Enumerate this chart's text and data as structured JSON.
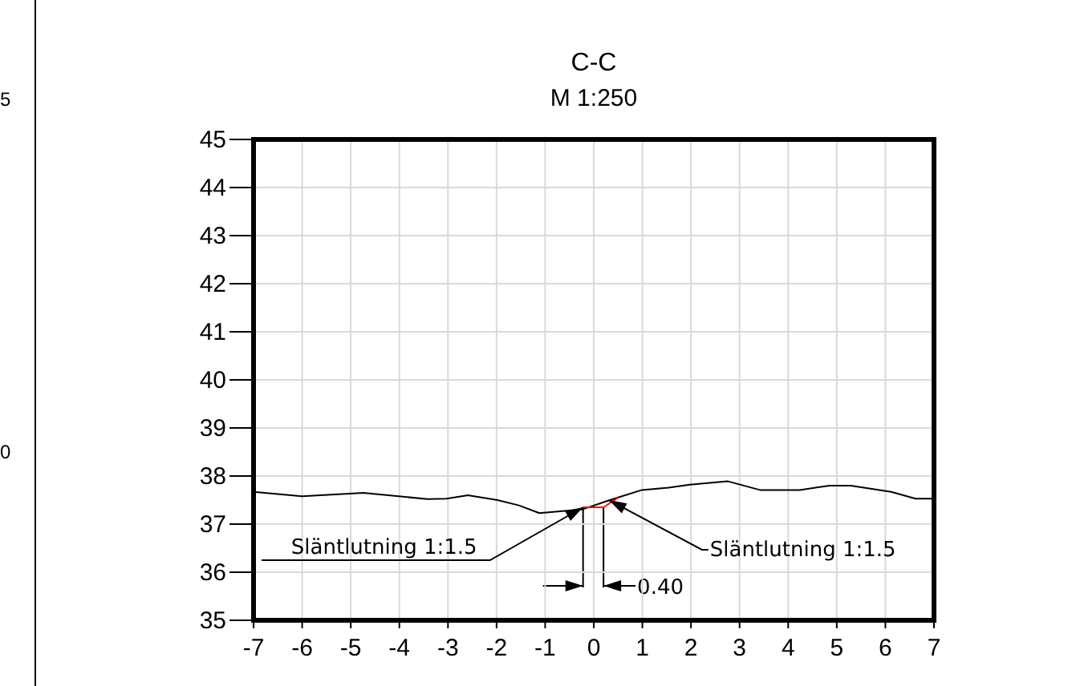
{
  "chart_data": {
    "type": "line",
    "title": "C-C",
    "subtitle": "M 1:250",
    "x": [
      -7,
      -6,
      -4.74,
      -3.42,
      -3.03,
      -2.59,
      -1.98,
      -1.54,
      -1.12,
      -0.22,
      0.33,
      0.99,
      1.54,
      1.98,
      2.76,
      3.42,
      4.24,
      4.85,
      5.29,
      6.12,
      6.62,
      7
    ],
    "series": [
      {
        "color": "#000000",
        "values": [
          37.67,
          37.58,
          37.65,
          37.52,
          37.53,
          37.6,
          37.5,
          37.39,
          37.23,
          37.31,
          37.5,
          37.71,
          37.76,
          37.82,
          37.89,
          37.71,
          37.71,
          37.8,
          37.8,
          37.67,
          37.53,
          37.53
        ]
      },
      {
        "color": "#ff0000",
        "x": [
          -0.22,
          0.2,
          0.5
        ],
        "values": [
          37.35,
          37.35,
          37.55
        ]
      }
    ],
    "xlim": [
      -7,
      7
    ],
    "xticks": [
      -7,
      -6,
      -5,
      -4,
      -3,
      -2,
      -1,
      0,
      1,
      2,
      3,
      4,
      5,
      6,
      7
    ],
    "ylim": [
      35,
      45
    ],
    "yticks": [
      35,
      36,
      37,
      38,
      39,
      40,
      41,
      42,
      43,
      44,
      45
    ],
    "grid": true,
    "line_style": "solid",
    "annotations": [
      {
        "text": "Släntlutning 1:1.5",
        "x": -0.22,
        "y": 37.35
      },
      {
        "text": "Släntlutning 1:1.5",
        "x": 0.31,
        "y": 37.5
      },
      "0.40",
      "5",
      "0"
    ]
  }
}
